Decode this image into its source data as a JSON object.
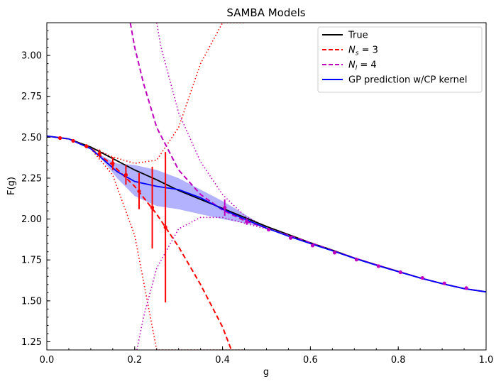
{
  "chart_data": {
    "type": "line",
    "title": "SAMBA Models",
    "xlabel": "g",
    "ylabel": "F(g)",
    "xlim": [
      0.0,
      1.0
    ],
    "ylim": [
      1.2,
      3.2
    ],
    "xticks": [
      "0.0",
      "0.2",
      "0.4",
      "0.6",
      "0.8",
      "1.0"
    ],
    "yticks": [
      "1.25",
      "1.50",
      "1.75",
      "2.00",
      "2.25",
      "2.50",
      "2.75",
      "3.00"
    ],
    "legend_position": "top-right",
    "legend": [
      {
        "label": "True",
        "color": "#000000",
        "style": "solid"
      },
      {
        "label": "N_s = 3",
        "color": "#ff0000",
        "style": "dashed"
      },
      {
        "label": "N_l = 4",
        "color": "#bf00bf",
        "style": "dashed"
      },
      {
        "label": "GP prediction w/CP kernel",
        "color": "#0000ff",
        "style": "solid"
      }
    ],
    "series": [
      {
        "name": "True",
        "color": "#000000",
        "x": [
          0.0,
          0.05,
          0.1,
          0.15,
          0.2,
          0.25,
          0.3,
          0.35,
          0.4,
          0.45,
          0.5,
          0.55,
          0.6,
          0.65,
          0.7,
          0.75,
          0.8,
          0.85,
          0.9,
          0.95,
          1.0
        ],
        "y": [
          2.507,
          2.49,
          2.44,
          2.37,
          2.3,
          2.24,
          2.175,
          2.12,
          2.065,
          2.01,
          1.955,
          1.905,
          1.855,
          1.81,
          1.762,
          1.72,
          1.68,
          1.64,
          1.605,
          1.575,
          1.555
        ]
      },
      {
        "name": "N_s = 3",
        "color": "#ff0000",
        "x": [
          0.0,
          0.05,
          0.1,
          0.15,
          0.2,
          0.25,
          0.3,
          0.35,
          0.4,
          0.42
        ],
        "y": [
          2.507,
          2.49,
          2.432,
          2.33,
          2.2,
          2.03,
          1.83,
          1.6,
          1.34,
          1.2
        ]
      },
      {
        "name": "N_l = 4",
        "color": "#bf00bf",
        "x": [
          0.19,
          0.2,
          0.22,
          0.25,
          0.3,
          0.35,
          0.4,
          0.45,
          0.5,
          0.55,
          0.6,
          0.65,
          0.7,
          0.75,
          0.8,
          0.85,
          0.9,
          0.95,
          1.0
        ],
        "y": [
          3.2,
          3.05,
          2.83,
          2.56,
          2.3,
          2.15,
          2.055,
          1.99,
          1.945,
          1.9,
          1.855,
          1.808,
          1.762,
          1.72,
          1.68,
          1.64,
          1.605,
          1.575,
          1.555
        ]
      },
      {
        "name": "GP prediction w/CP kernel",
        "color": "#0000ff",
        "x": [
          0.0,
          0.05,
          0.1,
          0.13,
          0.16,
          0.2,
          0.25,
          0.3,
          0.35,
          0.4,
          0.45,
          0.5,
          0.55,
          0.6,
          0.65,
          0.7,
          0.75,
          0.8,
          0.85,
          0.9,
          0.95,
          1.0
        ],
        "y": [
          2.507,
          2.49,
          2.43,
          2.36,
          2.29,
          2.23,
          2.2,
          2.18,
          2.13,
          2.06,
          2.0,
          1.945,
          1.895,
          1.85,
          1.806,
          1.76,
          1.718,
          1.678,
          1.64,
          1.605,
          1.575,
          1.555
        ]
      }
    ],
    "gp_band": {
      "color": "#0000ff",
      "x": [
        0.1,
        0.13,
        0.16,
        0.2,
        0.25,
        0.3,
        0.35,
        0.4,
        0.45,
        0.5
      ],
      "lo": [
        2.43,
        2.35,
        2.25,
        2.14,
        2.08,
        2.06,
        2.03,
        2.0,
        1.975,
        1.945
      ],
      "hi": [
        2.43,
        2.38,
        2.34,
        2.33,
        2.3,
        2.25,
        2.18,
        2.11,
        2.03,
        1.945
      ]
    },
    "ns_uncertainty": {
      "color": "#ff0000",
      "x": [
        0.1,
        0.15,
        0.2,
        0.25,
        0.3,
        0.35,
        0.4,
        0.45
      ],
      "lo": [
        2.43,
        2.27,
        1.9,
        1.2,
        1.2,
        1.2,
        1.2,
        1.2
      ],
      "hi": [
        2.44,
        2.38,
        2.34,
        2.36,
        2.56,
        2.95,
        3.2,
        3.2
      ]
    },
    "nl_uncertainty": {
      "color": "#bf00bf",
      "x_lo": [
        0.205,
        0.22,
        0.25,
        0.3,
        0.35,
        0.4,
        0.45,
        0.5
      ],
      "lo": [
        1.2,
        1.4,
        1.7,
        1.94,
        2.01,
        2.01,
        1.975,
        1.94
      ],
      "x_hi": [
        0.25,
        0.26,
        0.3,
        0.35,
        0.4,
        0.45,
        0.5
      ],
      "hi_x_left": [
        0.25,
        0.26,
        0.3,
        0.35,
        0.4,
        0.45,
        0.5
      ],
      "hi": [
        3.2,
        3.05,
        2.65,
        2.35,
        2.15,
        2.02,
        1.95
      ]
    },
    "ns_points": {
      "x": [
        0.03,
        0.06,
        0.09,
        0.12,
        0.15,
        0.18,
        0.21,
        0.24,
        0.27
      ],
      "y": [
        2.495,
        2.478,
        2.445,
        2.4,
        2.34,
        2.27,
        2.17,
        2.07,
        1.95
      ],
      "err": [
        0.004,
        0.006,
        0.012,
        0.025,
        0.04,
        0.06,
        0.11,
        0.25,
        0.46
      ]
    },
    "nl_points": {
      "x": [
        0.405,
        0.455,
        0.505,
        0.555,
        0.605,
        0.655,
        0.705,
        0.755,
        0.805,
        0.855,
        0.905,
        0.955
      ],
      "y": [
        2.07,
        1.985,
        1.935,
        1.885,
        1.838,
        1.795,
        1.752,
        1.712,
        1.675,
        1.64,
        1.607,
        1.578
      ],
      "err": [
        0.05,
        0.02,
        0.008,
        0.004,
        0.002,
        0.0,
        0.0,
        0.0,
        0.0,
        0.0,
        0.0,
        0.0
      ]
    }
  }
}
